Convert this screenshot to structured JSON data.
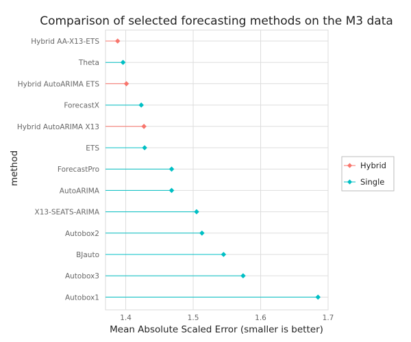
{
  "chart_data": {
    "type": "dot",
    "title": "Comparison of selected forecasting methods on the M3 data",
    "xlabel": "Mean Absolute Scaled Error (smaller is better)",
    "ylabel": "method",
    "xlim": [
      1.37,
      1.7
    ],
    "x_ticks": [
      "1.4",
      "1.5",
      "1.6",
      "1.7"
    ],
    "x_tick_values": [
      1.4,
      1.5,
      1.6,
      1.7
    ],
    "grid": true,
    "legend_position": "right",
    "series_colors": {
      "Hybrid": "#F8766D",
      "Single": "#00BFC4"
    },
    "legend": [
      {
        "name": "Hybrid",
        "color": "#F8766D"
      },
      {
        "name": "Single",
        "color": "#00BFC4"
      }
    ],
    "points": [
      {
        "method": "Hybrid AA-X13-ETS",
        "type": "Hybrid",
        "value": 1.388
      },
      {
        "method": "Theta",
        "type": "Single",
        "value": 1.396
      },
      {
        "method": "Hybrid AutoARIMA ETS",
        "type": "Hybrid",
        "value": 1.401
      },
      {
        "method": "ForecastX",
        "type": "Single",
        "value": 1.423
      },
      {
        "method": "Hybrid AutoARIMA X13",
        "type": "Hybrid",
        "value": 1.427
      },
      {
        "method": "ETS",
        "type": "Single",
        "value": 1.428
      },
      {
        "method": "ForecastPro",
        "type": "Single",
        "value": 1.468
      },
      {
        "method": "AutoARIMA",
        "type": "Single",
        "value": 1.468
      },
      {
        "method": "X13-SEATS-ARIMA",
        "type": "Single",
        "value": 1.505
      },
      {
        "method": "Autobox2",
        "type": "Single",
        "value": 1.513
      },
      {
        "method": "BJauto",
        "type": "Single",
        "value": 1.545
      },
      {
        "method": "Autobox3",
        "type": "Single",
        "value": 1.574
      },
      {
        "method": "Autobox1",
        "type": "Single",
        "value": 1.685
      }
    ]
  }
}
